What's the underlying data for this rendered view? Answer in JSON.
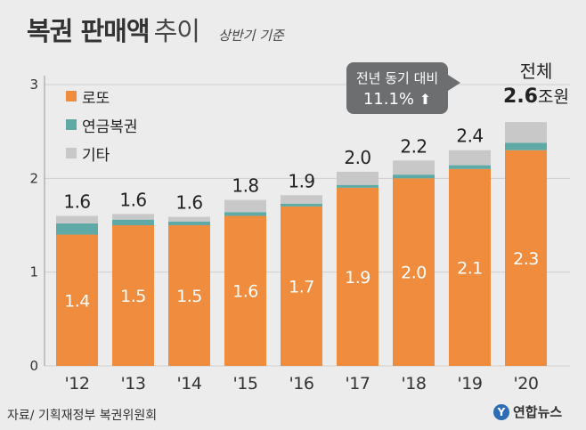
{
  "title": {
    "main": "복권 판매액",
    "light": "추이",
    "sub": "상반기 기준"
  },
  "legend": [
    {
      "label": "로또",
      "color": "#ef8c3e"
    },
    {
      "label": "연금복권",
      "color": "#5faaa6"
    },
    {
      "label": "기타",
      "color": "#c8c8c8"
    }
  ],
  "callout": {
    "line1": "전년 동기 대비",
    "line2": "11.1%",
    "arrow": "⬆"
  },
  "total_header": {
    "word": "전체",
    "value": "2.6",
    "unit": "조원"
  },
  "source": "자료/ 기획재정부 복권위원회",
  "brand": {
    "logo": "Y",
    "name": "연합뉴스"
  },
  "chart_data": {
    "type": "bar",
    "stacked": true,
    "categories": [
      "'12",
      "'13",
      "'14",
      "'15",
      "'16",
      "'17",
      "'18",
      "'19",
      "'20"
    ],
    "series": [
      {
        "name": "로또",
        "values": [
          1.4,
          1.5,
          1.5,
          1.6,
          1.7,
          1.9,
          2.0,
          2.1,
          2.3
        ],
        "labels": [
          "1.4",
          "1.5",
          "1.5",
          "1.6",
          "1.7",
          "1.9",
          "2.0",
          "2.1",
          "2.3"
        ]
      },
      {
        "name": "연금복권",
        "values": [
          0.12,
          0.06,
          0.04,
          0.04,
          0.03,
          0.03,
          0.04,
          0.04,
          0.08
        ]
      },
      {
        "name": "기타",
        "values": [
          0.08,
          0.06,
          0.05,
          0.13,
          0.09,
          0.14,
          0.15,
          0.16,
          0.22
        ]
      }
    ],
    "totals": [
      "1.6",
      "1.6",
      "1.6",
      "1.8",
      "1.9",
      "2.0",
      "2.2",
      "2.4",
      ""
    ],
    "yticks": [
      "0",
      "1",
      "2",
      "3"
    ],
    "ylim": [
      0,
      3
    ],
    "title": "복권 판매액 추이",
    "unit": "조원"
  }
}
